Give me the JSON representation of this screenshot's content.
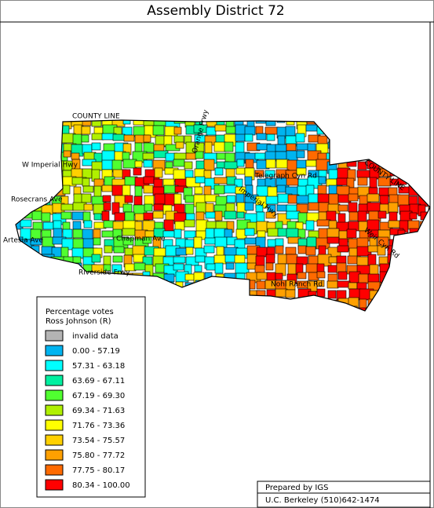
{
  "title": "Assembly District 72",
  "streets": [
    "COUNTY LINE",
    "W Imperial Hwy",
    "Rosecrans Ave",
    "Artesia Ave",
    "Chapman Ave",
    "Riverside Frwy",
    "Orange Frwy",
    "Telegraph Cyn Rd",
    "Imperial Hwy",
    "COUNTY LINE",
    "Weir Cyn Rd",
    "Nohl Ranch Rd"
  ],
  "legend": {
    "title": [
      "Percentage votes",
      "Ross Johnson (R)"
    ],
    "items": [
      {
        "label": "invalid data",
        "color": "#b4b4b4"
      },
      {
        "label": "0.00 - 57.19",
        "color": "#00b4f0"
      },
      {
        "label": "57.31 - 63.18",
        "color": "#00ffff"
      },
      {
        "label": "63.69 - 67.11",
        "color": "#00f0a0"
      },
      {
        "label": "67.19 - 69.30",
        "color": "#50ff30"
      },
      {
        "label": "69.34 - 71.63",
        "color": "#b0f000"
      },
      {
        "label": "71.76 - 73.36",
        "color": "#ffff00"
      },
      {
        "label": "73.54 - 75.57",
        "color": "#ffd000"
      },
      {
        "label": "75.80 - 77.72",
        "color": "#ffa000"
      },
      {
        "label": "77.75 - 80.17",
        "color": "#ff6a00"
      },
      {
        "label": "80.34 - 100.00",
        "color": "#ff0000"
      }
    ]
  },
  "footer": [
    "Prepared by IGS",
    "U.C. Berkeley (510)642-1474"
  ]
}
